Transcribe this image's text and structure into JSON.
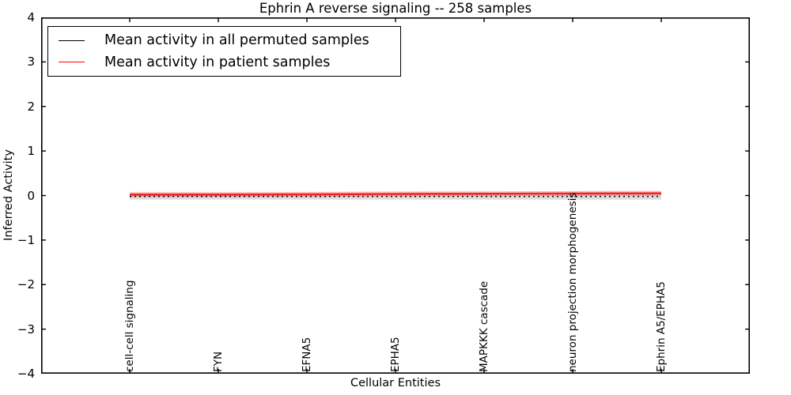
{
  "title": "Ephrin A  reverse signaling -- 258 samples",
  "axes": {
    "ylabel": "Inferred Activity",
    "xlabel": "Cellular Entities",
    "yticks": [
      "4",
      "3",
      "2",
      "1",
      "0",
      "−1",
      "−2",
      "−3",
      "−4"
    ]
  },
  "legend": [
    {
      "label": "Mean activity in all permuted samples",
      "color": "#000000"
    },
    {
      "label": "Mean activity in patient samples",
      "color": "#ff0000"
    }
  ],
  "chart_data": {
    "type": "line",
    "title": "Ephrin A  reverse signaling -- 258 samples",
    "xlabel": "Cellular Entities",
    "ylabel": "Inferred Activity",
    "ylim": [
      -4,
      4
    ],
    "grid": false,
    "legend_position": "upper left",
    "categories": [
      "cell-cell signaling",
      "FYN",
      "EFNA5",
      "EPHA5",
      "MAPKKK cascade",
      "neuron projection morphogenesis",
      "Ephrin A5/EPHA5"
    ],
    "series": [
      {
        "name": "Mean activity in all permuted samples",
        "color": "#000000",
        "style": "dotted",
        "values": [
          -0.02,
          -0.02,
          -0.02,
          -0.02,
          -0.02,
          -0.02,
          -0.02
        ],
        "band": 0.07,
        "band_color": "rgba(130,130,130,0.28)"
      },
      {
        "name": "Mean activity in patient samples",
        "color": "#ee2222",
        "style": "solid",
        "values": [
          0.02,
          0.02,
          0.025,
          0.035,
          0.04,
          0.045,
          0.05
        ],
        "band": 0.055,
        "band_color": "rgba(255,40,40,0.30)"
      }
    ]
  }
}
